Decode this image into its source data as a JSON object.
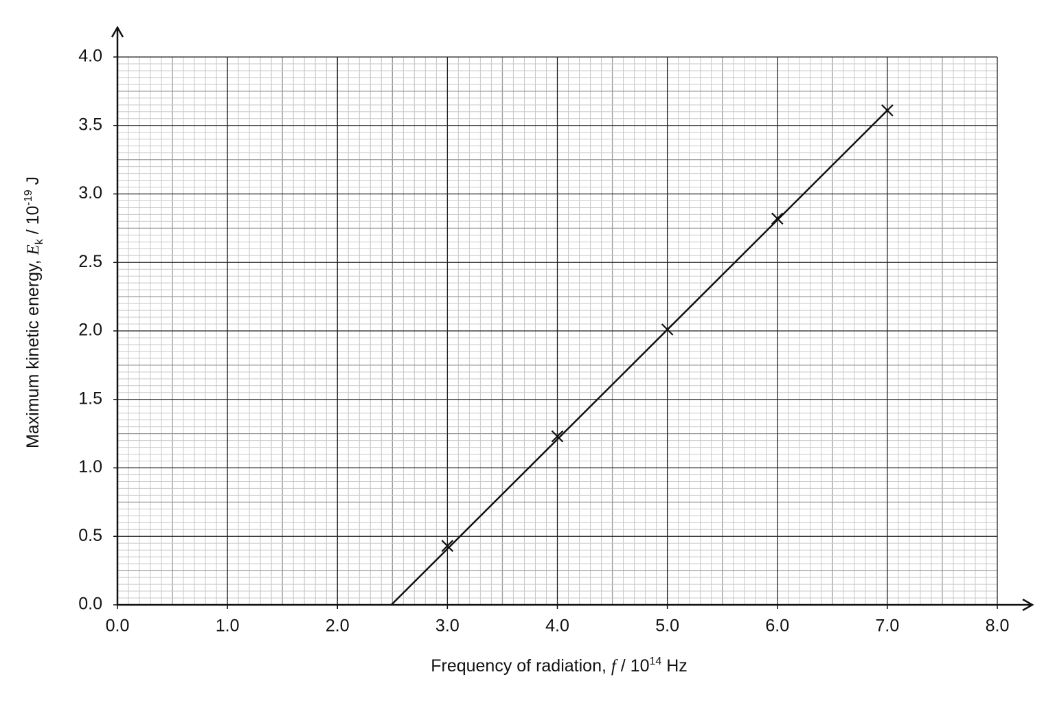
{
  "chart_data": {
    "type": "scatter",
    "x": [
      3.0,
      4.0,
      5.0,
      6.0,
      7.0
    ],
    "values": [
      0.43,
      1.23,
      2.01,
      2.82,
      3.61
    ],
    "fit_line": {
      "x": [
        2.49,
        7.0
      ],
      "values": [
        0,
        3.61
      ]
    },
    "color": "#111111",
    "xlabel": [
      "Frequency of radiation, ",
      "f",
      " / 10",
      "14",
      " Hz"
    ],
    "ylabel": [
      "Maximum kinetic energy, ",
      "E",
      "k",
      " / 10",
      "-19",
      " J"
    ],
    "xlim": [
      0,
      8
    ],
    "ylim": [
      0,
      4
    ],
    "xticks": [
      {
        "value": 0,
        "label": "0.0"
      },
      {
        "value": 1,
        "label": "1.0"
      },
      {
        "value": 2,
        "label": "2.0"
      },
      {
        "value": 3,
        "label": "3.0"
      },
      {
        "value": 4,
        "label": "4.0"
      },
      {
        "value": 5,
        "label": "5.0"
      },
      {
        "value": 6,
        "label": "6.0"
      },
      {
        "value": 7,
        "label": "7.0"
      },
      {
        "value": 8,
        "label": "8.0"
      }
    ],
    "yticks": [
      {
        "value": 0,
        "label": "0.0"
      },
      {
        "value": 0.5,
        "label": "0.5"
      },
      {
        "value": 1,
        "label": "1.0"
      },
      {
        "value": 1.5,
        "label": "1.5"
      },
      {
        "value": 2,
        "label": "2.0"
      },
      {
        "value": 2.5,
        "label": "2.5"
      },
      {
        "value": 3,
        "label": "3.0"
      },
      {
        "value": 3.5,
        "label": "3.5"
      },
      {
        "value": 4,
        "label": "4.0"
      }
    ],
    "grid": true
  }
}
